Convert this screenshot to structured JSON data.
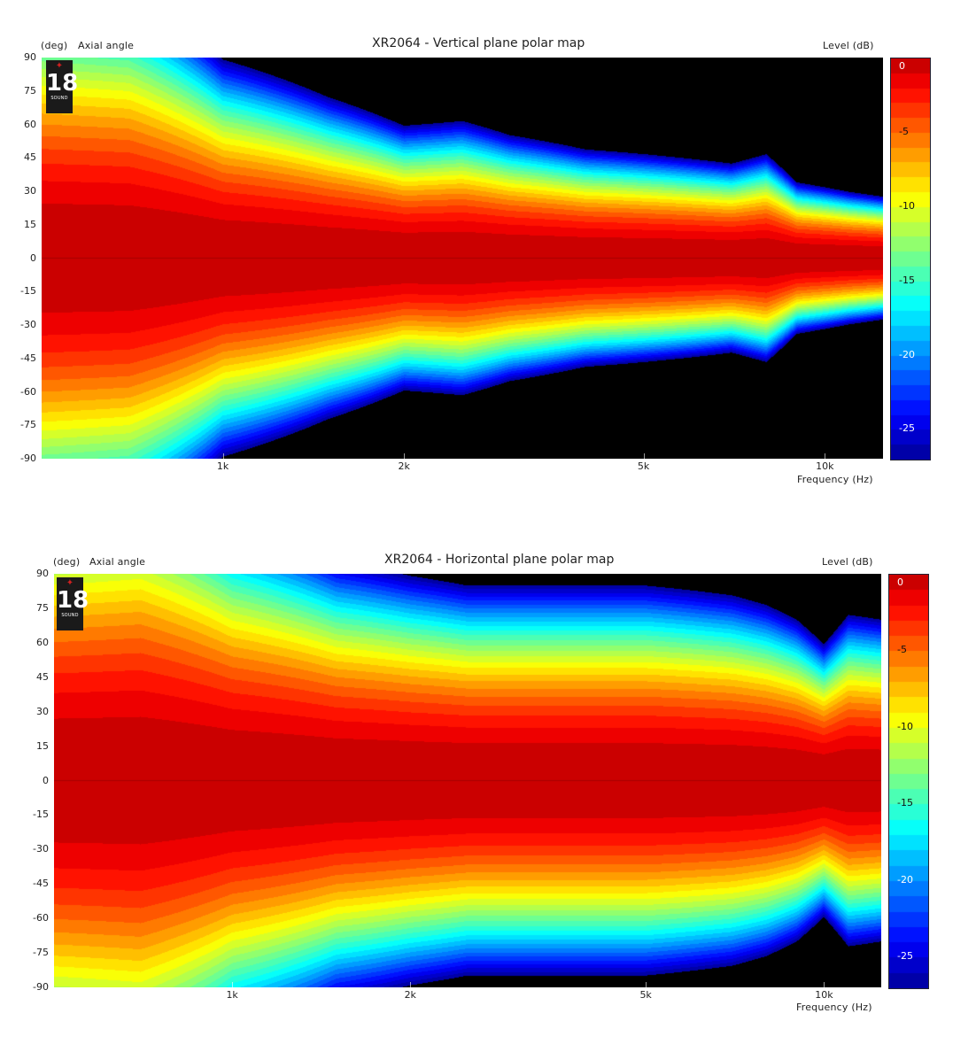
{
  "chart_data": [
    {
      "type": "heatmap",
      "title": "XR2064 - Vertical plane polar map",
      "ylabel_unit": "(deg)",
      "ylabel": "Axial angle",
      "colorbar_label": "Level (dB)",
      "xlabel": "Frequency (Hz)",
      "x_scale": "log",
      "xlim": [
        500,
        12500
      ],
      "ylim": [
        -90,
        90
      ],
      "y_ticks": [
        90,
        75,
        60,
        45,
        30,
        15,
        0,
        -15,
        -30,
        -45,
        -60,
        -75,
        -90
      ],
      "x_ticks": [
        {
          "value": 1000,
          "label": "1k"
        },
        {
          "value": 2000,
          "label": "2k"
        },
        {
          "value": 5000,
          "label": "5k"
        },
        {
          "value": 10000,
          "label": "10k"
        }
      ],
      "colorbar_ticks": [
        0,
        -5,
        -10,
        -15,
        -20,
        -25
      ],
      "colorbar_range": [
        -27,
        0
      ],
      "contour_step_db": 1,
      "colormap": "jet-with-black-below-floor",
      "logo": {
        "number": "18",
        "brand": "SOUND"
      },
      "minus6dB_half_angle_deg": {
        "freq_hz": [
          500,
          700,
          1000,
          1500,
          2000,
          2500,
          3000,
          4000,
          5000,
          6000,
          7000,
          8000,
          9000,
          10000,
          11000,
          12500
        ],
        "top": [
          60,
          58,
          42,
          34,
          28,
          29,
          26,
          23,
          22,
          21,
          20,
          22,
          16,
          15,
          14,
          13
        ],
        "bottom": [
          60,
          58,
          42,
          34,
          28,
          29,
          26,
          23,
          22,
          21,
          20,
          22,
          16,
          15,
          14,
          13
        ]
      }
    },
    {
      "type": "heatmap",
      "title": "XR2064 - Horizontal plane polar map",
      "ylabel_unit": "(deg)",
      "ylabel": "Axial angle",
      "colorbar_label": "Level (dB)",
      "xlabel": "Frequency (Hz)",
      "x_scale": "log",
      "xlim": [
        500,
        12500
      ],
      "ylim": [
        -90,
        90
      ],
      "y_ticks": [
        90,
        75,
        60,
        45,
        30,
        15,
        0,
        -15,
        -30,
        -45,
        -60,
        -75,
        -90
      ],
      "x_ticks": [
        {
          "value": 1000,
          "label": "1k"
        },
        {
          "value": 2000,
          "label": "2k"
        },
        {
          "value": 5000,
          "label": "5k"
        },
        {
          "value": 10000,
          "label": "10k"
        }
      ],
      "colorbar_ticks": [
        0,
        -5,
        -10,
        -15,
        -20,
        -25
      ],
      "colorbar_range": [
        -27,
        0
      ],
      "contour_step_db": 1,
      "colormap": "jet-with-black-below-floor",
      "logo": {
        "number": "18",
        "brand": "SOUND"
      },
      "minus6dB_half_angle_deg": {
        "freq_hz": [
          500,
          700,
          1000,
          1500,
          2000,
          2500,
          3000,
          4000,
          5000,
          6000,
          7000,
          8000,
          9000,
          10000,
          11000,
          12500
        ],
        "top": [
          66,
          68,
          54,
          45,
          42,
          40,
          40,
          40,
          40,
          39,
          38,
          36,
          33,
          28,
          34,
          33
        ],
        "bottom": [
          66,
          68,
          54,
          45,
          42,
          40,
          40,
          40,
          40,
          39,
          38,
          36,
          33,
          28,
          34,
          33
        ]
      }
    }
  ]
}
